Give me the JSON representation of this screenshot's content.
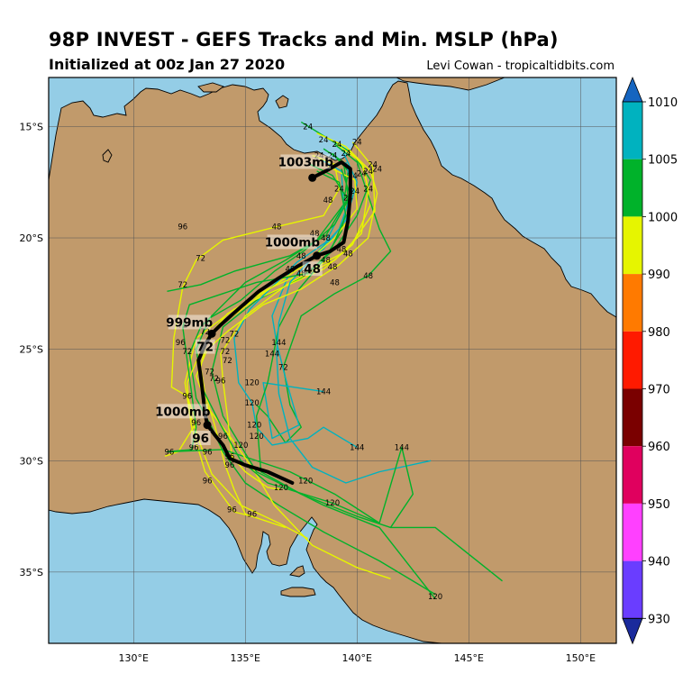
{
  "header": {
    "title": "98P INVEST - GEFS Tracks and Min. MSLP (hPa)",
    "subtitle": "Initialized at 00z Jan 27 2020",
    "credit": "Levi Cowan - tropicaltidbits.com"
  },
  "map": {
    "lon_range": [
      126.2,
      151.6
    ],
    "lat_range": [
      -38.2,
      -12.8
    ],
    "lon_ticks": [
      130,
      135,
      140,
      145,
      150
    ],
    "lon_tick_labels": [
      "130°E",
      "135°E",
      "140°E",
      "145°E",
      "150°E"
    ],
    "lat_ticks": [
      -15,
      -20,
      -25,
      -30,
      -35
    ],
    "lat_tick_labels": [
      "15°S",
      "20°S",
      "25°S",
      "30°S",
      "35°S"
    ],
    "colors": {
      "ocean": "#94cde6",
      "land": "#c19a6b",
      "coast": "#000000",
      "grid": "#555555"
    }
  },
  "colorbar": {
    "ticks": [
      "1010",
      "1005",
      "1000",
      "990",
      "980",
      "970",
      "960",
      "950",
      "940",
      "930"
    ],
    "colors": [
      "#1565c0",
      "#00b2bf",
      "#00b22a",
      "#e6f500",
      "#ff7a00",
      "#ff1a00",
      "#7a0000",
      "#e0005e",
      "#ff40ff",
      "#6a3dff",
      "#1a2a9c"
    ]
  },
  "mean_track": {
    "points": [
      [
        138.0,
        -17.3
      ],
      [
        138.6,
        -17.0
      ],
      [
        139.3,
        -16.6
      ],
      [
        139.7,
        -16.9
      ],
      [
        139.7,
        -18.0
      ],
      [
        139.6,
        -19.2
      ],
      [
        139.4,
        -20.2
      ],
      [
        138.8,
        -20.6
      ],
      [
        138.2,
        -20.8
      ],
      [
        137.3,
        -21.3
      ],
      [
        136.5,
        -21.8
      ],
      [
        135.6,
        -22.4
      ],
      [
        134.8,
        -23.1
      ],
      [
        133.9,
        -23.9
      ],
      [
        133.5,
        -24.3
      ],
      [
        133.2,
        -24.8
      ],
      [
        132.9,
        -25.5
      ],
      [
        133.0,
        -26.2
      ],
      [
        133.1,
        -27.0
      ],
      [
        133.2,
        -27.9
      ],
      [
        133.3,
        -28.4
      ],
      [
        133.6,
        -28.8
      ],
      [
        134.0,
        -29.3
      ],
      [
        134.3,
        -29.9
      ],
      [
        135.0,
        -30.2
      ],
      [
        136.0,
        -30.5
      ],
      [
        137.1,
        -31.0
      ]
    ],
    "markers": [
      [
        138.0,
        -17.3
      ],
      [
        138.2,
        -20.8
      ],
      [
        133.5,
        -24.3
      ],
      [
        133.3,
        -28.4
      ]
    ]
  },
  "labels": {
    "pressure": [
      {
        "text": "1003mb",
        "lon": 137.7,
        "lat": -16.7
      },
      {
        "text": "1000mb",
        "lon": 137.1,
        "lat": -20.3
      },
      {
        "text": "999mb",
        "lon": 132.5,
        "lat": -23.9
      },
      {
        "text": "1000mb",
        "lon": 132.2,
        "lat": -27.9
      }
    ],
    "hours": [
      {
        "text": "48",
        "lon": 138.0,
        "lat": -21.5
      },
      {
        "text": "72",
        "lon": 133.2,
        "lat": -25.0
      },
      {
        "text": "96",
        "lon": 133.0,
        "lat": -29.1
      }
    ]
  },
  "member_labels": [
    {
      "t": "24",
      "lon": 137.8,
      "lat": -15.0
    },
    {
      "t": "24",
      "lon": 138.5,
      "lat": -15.6
    },
    {
      "t": "24",
      "lon": 139.1,
      "lat": -15.8
    },
    {
      "t": "24",
      "lon": 140.0,
      "lat": -15.7
    },
    {
      "t": "24",
      "lon": 138.3,
      "lat": -16.3
    },
    {
      "t": "24",
      "lon": 138.9,
      "lat": -16.3
    },
    {
      "t": "24",
      "lon": 139.5,
      "lat": -16.2
    },
    {
      "t": "24",
      "lon": 139.8,
      "lat": -17.2
    },
    {
      "t": "24",
      "lon": 140.2,
      "lat": -17.1
    },
    {
      "t": "24",
      "lon": 140.5,
      "lat": -17.0
    },
    {
      "t": "24",
      "lon": 140.9,
      "lat": -16.9
    },
    {
      "t": "24",
      "lon": 140.7,
      "lat": -16.7
    },
    {
      "t": "24",
      "lon": 139.2,
      "lat": -17.8
    },
    {
      "t": "24",
      "lon": 139.9,
      "lat": -17.9
    },
    {
      "t": "24",
      "lon": 140.5,
      "lat": -17.8
    },
    {
      "t": "24",
      "lon": 139.6,
      "lat": -18.2
    },
    {
      "t": "48",
      "lon": 138.7,
      "lat": -18.3
    },
    {
      "t": "48",
      "lon": 136.4,
      "lat": -19.5
    },
    {
      "t": "48",
      "lon": 138.1,
      "lat": -19.8
    },
    {
      "t": "48",
      "lon": 138.6,
      "lat": -20.0
    },
    {
      "t": "48",
      "lon": 139.3,
      "lat": -20.5
    },
    {
      "t": "48",
      "lon": 139.6,
      "lat": -20.7
    },
    {
      "t": "48",
      "lon": 137.5,
      "lat": -20.8
    },
    {
      "t": "48",
      "lon": 138.6,
      "lat": -21.0
    },
    {
      "t": "48",
      "lon": 137.0,
      "lat": -21.4
    },
    {
      "t": "48",
      "lon": 137.5,
      "lat": -21.6
    },
    {
      "t": "48",
      "lon": 137.8,
      "lat": -21.5
    },
    {
      "t": "48",
      "lon": 138.9,
      "lat": -21.3
    },
    {
      "t": "48",
      "lon": 140.5,
      "lat": -21.7
    },
    {
      "t": "48",
      "lon": 139.0,
      "lat": -22.0
    },
    {
      "t": "96",
      "lon": 132.2,
      "lat": -19.5
    },
    {
      "t": "72",
      "lon": 133.0,
      "lat": -20.9
    },
    {
      "t": "72",
      "lon": 132.2,
      "lat": -22.1
    },
    {
      "t": "72",
      "lon": 132.2,
      "lat": -23.9
    },
    {
      "t": "72",
      "lon": 133.2,
      "lat": -24.2
    },
    {
      "t": "72",
      "lon": 134.5,
      "lat": -24.3
    },
    {
      "t": "72",
      "lon": 134.1,
      "lat": -24.6
    },
    {
      "t": "96",
      "lon": 132.1,
      "lat": -24.7
    },
    {
      "t": "72",
      "lon": 132.4,
      "lat": -25.1
    },
    {
      "t": "72",
      "lon": 134.1,
      "lat": -25.1
    },
    {
      "t": "72",
      "lon": 134.2,
      "lat": -25.5
    },
    {
      "t": "72",
      "lon": 133.4,
      "lat": -26.0
    },
    {
      "t": "72",
      "lon": 133.6,
      "lat": -26.3
    },
    {
      "t": "96",
      "lon": 133.9,
      "lat": -26.4
    },
    {
      "t": "72",
      "lon": 136.7,
      "lat": -25.8
    },
    {
      "t": "144",
      "lon": 136.5,
      "lat": -24.7
    },
    {
      "t": "144",
      "lon": 136.2,
      "lat": -25.2
    },
    {
      "t": "96",
      "lon": 132.4,
      "lat": -27.1
    },
    {
      "t": "120",
      "lon": 135.3,
      "lat": -26.5
    },
    {
      "t": "144",
      "lon": 138.5,
      "lat": -26.9
    },
    {
      "t": "120",
      "lon": 135.3,
      "lat": -27.4
    },
    {
      "t": "96",
      "lon": 132.8,
      "lat": -28.3
    },
    {
      "t": "120",
      "lon": 135.4,
      "lat": -28.4
    },
    {
      "t": "120",
      "lon": 135.5,
      "lat": -28.9
    },
    {
      "t": "96",
      "lon": 134.0,
      "lat": -28.9
    },
    {
      "t": "120",
      "lon": 134.8,
      "lat": -29.3
    },
    {
      "t": "96",
      "lon": 132.7,
      "lat": -29.4
    },
    {
      "t": "96",
      "lon": 133.3,
      "lat": -29.6
    },
    {
      "t": "96",
      "lon": 131.6,
      "lat": -29.6
    },
    {
      "t": "96",
      "lon": 134.3,
      "lat": -29.8
    },
    {
      "t": "96",
      "lon": 134.3,
      "lat": -30.2
    },
    {
      "t": "144",
      "lon": 140.0,
      "lat": -29.4
    },
    {
      "t": "144",
      "lon": 142.0,
      "lat": -29.4
    },
    {
      "t": "96",
      "lon": 133.3,
      "lat": -30.9
    },
    {
      "t": "120",
      "lon": 137.7,
      "lat": -30.9
    },
    {
      "t": "120",
      "lon": 136.6,
      "lat": -31.2
    },
    {
      "t": "120",
      "lon": 138.9,
      "lat": -31.9
    },
    {
      "t": "96",
      "lon": 134.4,
      "lat": -32.2
    },
    {
      "t": "96",
      "lon": 135.3,
      "lat": -32.4
    },
    {
      "t": "120",
      "lon": 143.5,
      "lat": -36.1
    }
  ]
}
